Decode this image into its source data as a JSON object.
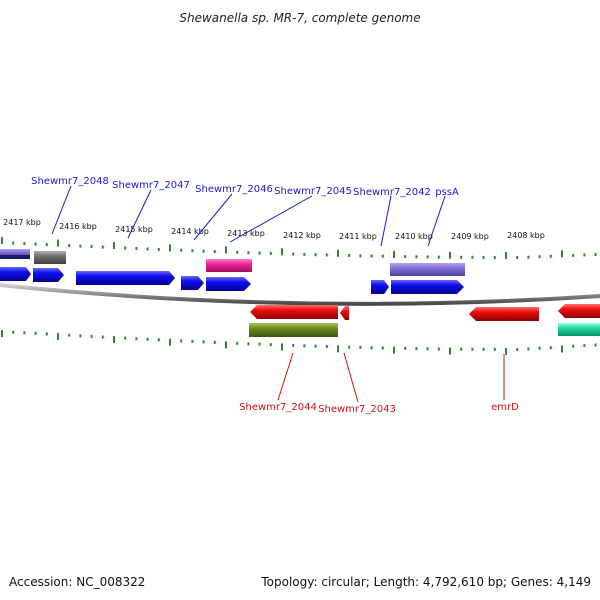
{
  "title": "Shewanella sp. MR-7, complete genome",
  "footer": {
    "accession": "Accession: NC_008322",
    "summary": "Topology: circular; Length: 4,792,610 bp; Genes: 4,149"
  },
  "ruler_labels": [
    "2417 kbp",
    "2416 kbp",
    "2415 kbp",
    "2414 kbp",
    "2413 kbp",
    "2412 kbp",
    "2411 kbp",
    "2410 kbp",
    "2409 kbp",
    "2408 kbp"
  ],
  "gene_labels_top": [
    "Shewmr7_2048",
    "Shewmr7_2047",
    "Shewmr7_2046",
    "Shewmr7_2045",
    "Shewmr7_2042",
    "pssA"
  ],
  "gene_labels_bottom": [
    "Shewmr7_2044",
    "Shewmr7_2043",
    "emrD"
  ],
  "colors": {
    "forward_label": "#1a1acc",
    "reverse_label": "#cc1111",
    "blue_gene": "#1010ee",
    "red_gene": "#ee1010",
    "purple_gene": "#8070d8",
    "magenta_gene": "#ee2299",
    "olive_gene": "#6b8a1e",
    "gray_gene": "#707070",
    "teal_gene": "#20d8a0",
    "tick": "#2a8a2a",
    "backbone": "#8a8a8a"
  }
}
